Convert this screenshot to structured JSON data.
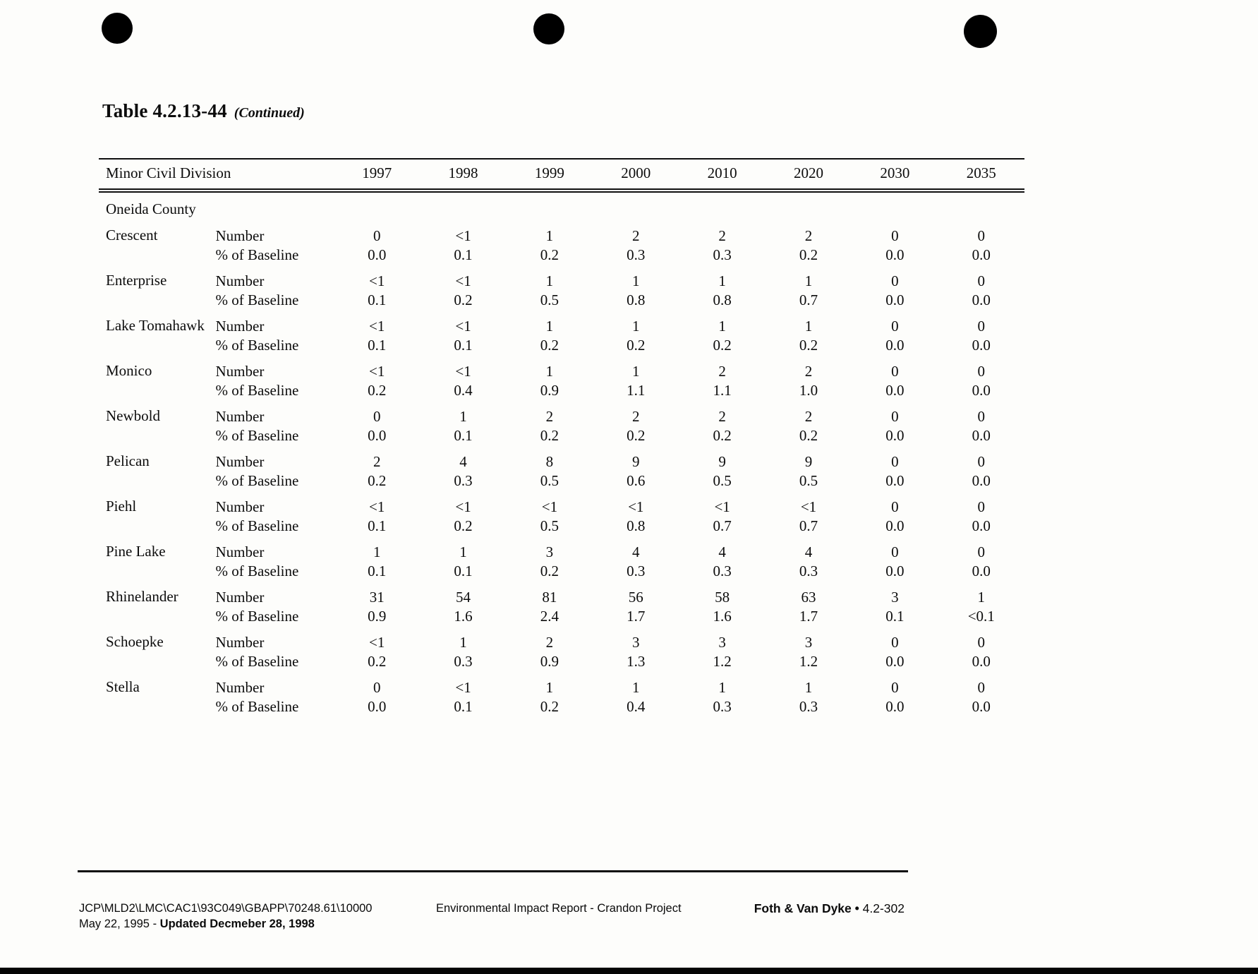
{
  "page": {
    "title": "Table 4.2.13-44",
    "title_suffix": "(Continued)"
  },
  "table": {
    "header": {
      "division_label": "Minor Civil Division",
      "years": [
        "1997",
        "1998",
        "1999",
        "2000",
        "2010",
        "2020",
        "2030",
        "2035"
      ]
    },
    "section_label": "Oneida County",
    "metric_labels": {
      "number": "Number",
      "pct": "% of Baseline"
    },
    "rows": [
      {
        "name": "Crescent",
        "number": [
          "0",
          "<1",
          "1",
          "2",
          "2",
          "2",
          "0",
          "0"
        ],
        "pct": [
          "0.0",
          "0.1",
          "0.2",
          "0.3",
          "0.3",
          "0.2",
          "0.0",
          "0.0"
        ]
      },
      {
        "name": "Enterprise",
        "number": [
          "<1",
          "<1",
          "1",
          "1",
          "1",
          "1",
          "0",
          "0"
        ],
        "pct": [
          "0.1",
          "0.2",
          "0.5",
          "0.8",
          "0.8",
          "0.7",
          "0.0",
          "0.0"
        ]
      },
      {
        "name": "Lake Tomahawk",
        "number": [
          "<1",
          "<1",
          "1",
          "1",
          "1",
          "1",
          "0",
          "0"
        ],
        "pct": [
          "0.1",
          "0.1",
          "0.2",
          "0.2",
          "0.2",
          "0.2",
          "0.0",
          "0.0"
        ]
      },
      {
        "name": "Monico",
        "number": [
          "<1",
          "<1",
          "1",
          "1",
          "2",
          "2",
          "0",
          "0"
        ],
        "pct": [
          "0.2",
          "0.4",
          "0.9",
          "1.1",
          "1.1",
          "1.0",
          "0.0",
          "0.0"
        ]
      },
      {
        "name": "Newbold",
        "number": [
          "0",
          "1",
          "2",
          "2",
          "2",
          "2",
          "0",
          "0"
        ],
        "pct": [
          "0.0",
          "0.1",
          "0.2",
          "0.2",
          "0.2",
          "0.2",
          "0.0",
          "0.0"
        ]
      },
      {
        "name": "Pelican",
        "number": [
          "2",
          "4",
          "8",
          "9",
          "9",
          "9",
          "0",
          "0"
        ],
        "pct": [
          "0.2",
          "0.3",
          "0.5",
          "0.6",
          "0.5",
          "0.5",
          "0.0",
          "0.0"
        ]
      },
      {
        "name": "Piehl",
        "number": [
          "<1",
          "<1",
          "<1",
          "<1",
          "<1",
          "<1",
          "0",
          "0"
        ],
        "pct": [
          "0.1",
          "0.2",
          "0.5",
          "0.8",
          "0.7",
          "0.7",
          "0.0",
          "0.0"
        ]
      },
      {
        "name": "Pine Lake",
        "number": [
          "1",
          "1",
          "3",
          "4",
          "4",
          "4",
          "0",
          "0"
        ],
        "pct": [
          "0.1",
          "0.1",
          "0.2",
          "0.3",
          "0.3",
          "0.3",
          "0.0",
          "0.0"
        ]
      },
      {
        "name": "Rhinelander",
        "number": [
          "31",
          "54",
          "81",
          "56",
          "58",
          "63",
          "3",
          "1"
        ],
        "pct": [
          "0.9",
          "1.6",
          "2.4",
          "1.7",
          "1.6",
          "1.7",
          "0.1",
          "<0.1"
        ]
      },
      {
        "name": "Schoepke",
        "number": [
          "<1",
          "1",
          "2",
          "3",
          "3",
          "3",
          "0",
          "0"
        ],
        "pct": [
          "0.2",
          "0.3",
          "0.9",
          "1.3",
          "1.2",
          "1.2",
          "0.0",
          "0.0"
        ]
      },
      {
        "name": "Stella",
        "number": [
          "0",
          "<1",
          "1",
          "1",
          "1",
          "1",
          "0",
          "0"
        ],
        "pct": [
          "0.0",
          "0.1",
          "0.2",
          "0.4",
          "0.3",
          "0.3",
          "0.0",
          "0.0"
        ]
      }
    ]
  },
  "footer": {
    "doc_path": "JCP\\MLD2\\LMC\\CAC1\\93C049\\GBAPP\\70248.61\\10000",
    "date_prefix": "May 22, 1995 - ",
    "date_bold": "Updated Decmeber 28, 1998",
    "center": "Environmental Impact Report - Crandon Project",
    "firm": "Foth & Van Dyke",
    "separator": " • ",
    "page_ref": "4.2-302"
  }
}
